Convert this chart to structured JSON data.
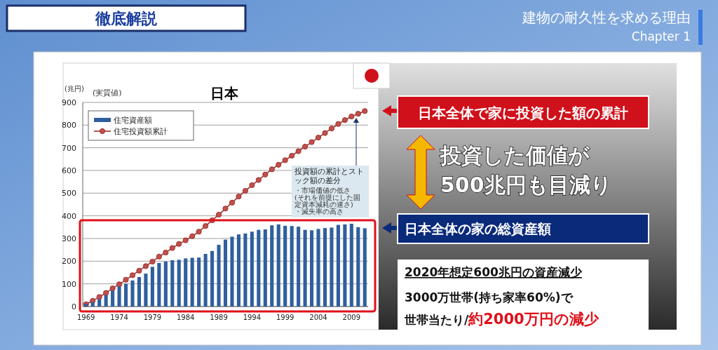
{
  "chart_data": {
    "type": "bar",
    "title": "日本",
    "subtitle": "(実質値)",
    "ylabel": "(兆円)",
    "categories": [
      "1969",
      null,
      null,
      null,
      null,
      "1974",
      null,
      null,
      null,
      null,
      "1979",
      null,
      null,
      null,
      null,
      "1984",
      null,
      null,
      null,
      null,
      "1989",
      null,
      null,
      null,
      null,
      "1994",
      null,
      null,
      null,
      null,
      "1999",
      null,
      null,
      null,
      null,
      "2004",
      null,
      null,
      null,
      null,
      "2009",
      null,
      null
    ],
    "series": [
      {
        "name": "住宅資産額",
        "color": "#2f5f9e",
        "values": [
          12,
          20,
          32,
          50,
          70,
          88,
          100,
          115,
          130,
          145,
          175,
          192,
          198,
          204,
          206,
          212,
          215,
          216,
          232,
          245,
          272,
          295,
          308,
          318,
          322,
          330,
          338,
          340,
          358,
          362,
          356,
          355,
          352,
          338,
          336,
          342,
          346,
          348,
          360,
          362,
          365,
          350,
          345
        ]
      },
      {
        "name": "住宅投資額累計",
        "type": "line",
        "color": "#9e2f2a",
        "marker": "circle",
        "values": [
          10,
          25,
          42,
          60,
          80,
          98,
          118,
          138,
          158,
          178,
          198,
          220,
          238,
          258,
          276,
          292,
          310,
          330,
          355,
          380,
          405,
          432,
          458,
          485,
          510,
          535,
          558,
          582,
          605,
          625,
          645,
          665,
          685,
          705,
          725,
          745,
          765,
          785,
          805,
          822,
          838,
          850,
          862
        ]
      }
    ],
    "ylim": [
      0,
      900
    ],
    "yticks": [
      0,
      100,
      200,
      300,
      400,
      500,
      600,
      700,
      800,
      900
    ],
    "grid": "y",
    "legend": "top left",
    "annotations": [
      "徹底解説",
      "建物の耐久性を求める理由",
      "Chapter 1",
      "投資額の累計とストック額の差分",
      "・市場価値の低さ",
      "(それを前提にした固定資本減耗の速さ)",
      "・滅失率の高さ",
      "日本全体で家に投資した額の累計",
      "投資した価値が",
      "500兆円も目減り",
      "日本全体の家の総資産額",
      "2020年想定600兆円の資産減少",
      "3000万世帯(持ち家率60%)で",
      "世帯当たり/",
      "約2000万円の減少"
    ]
  }
}
